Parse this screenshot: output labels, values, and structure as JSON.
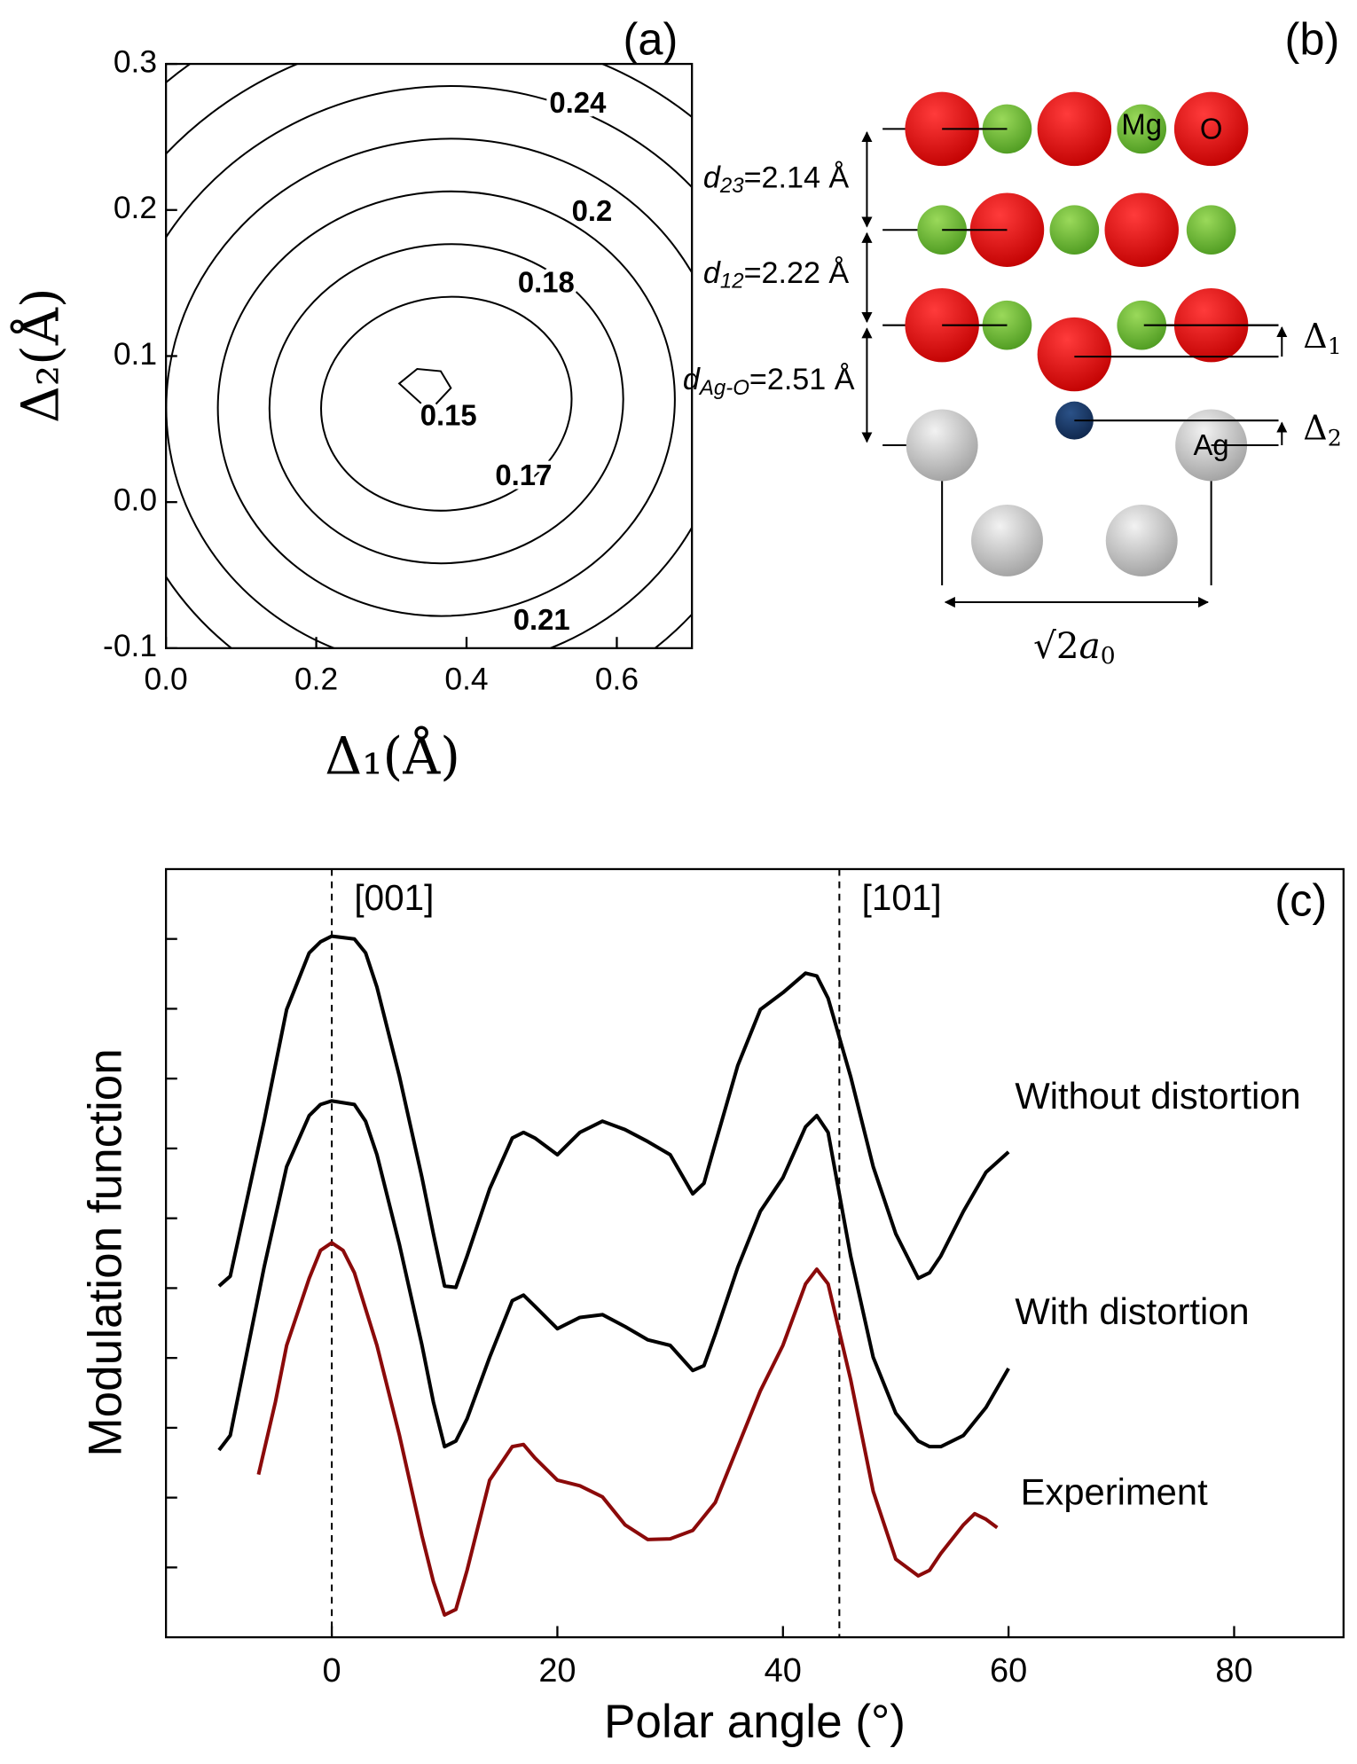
{
  "chart_data": [
    {
      "type": "contour",
      "title": "(a)",
      "xlabel": "Δ₁(Å)",
      "ylabel": "Δ₂(Å)",
      "xlim": [
        0,
        0.7
      ],
      "ylim": [
        -0.1,
        0.3
      ],
      "xticks": [
        {
          "value": 0,
          "label": "0.0"
        },
        0.2,
        0.4,
        0.6
      ],
      "yticks": [
        -0.1,
        {
          "value": 0,
          "label": "0.0"
        },
        0.1,
        0.2,
        0.3
      ],
      "contour_labels": [
        {
          "value": 0.24,
          "x": 0.548,
          "y": 0.272
        },
        {
          "value": 0.2,
          "x": 0.567,
          "y": 0.198
        },
        {
          "value": 0.18,
          "x": 0.506,
          "y": 0.149
        },
        {
          "value": 0.15,
          "x": 0.376,
          "y": 0.058
        },
        {
          "value": 0.17,
          "x": 0.476,
          "y": 0.017
        },
        {
          "value": 0.21,
          "x": 0.5,
          "y": -0.082
        }
      ]
    },
    {
      "type": "line",
      "title": "(c)",
      "xlabel": "Polar angle (°)",
      "ylabel": "Modulation function",
      "xlim": [
        -14.7,
        89.7
      ],
      "ylim": [
        0,
        11
      ],
      "xticks": [
        0,
        20,
        40,
        60,
        80
      ],
      "yticks": [
        1,
        2,
        3,
        4,
        5,
        6,
        7,
        8,
        9,
        10
      ],
      "vlines": [
        {
          "x": 0,
          "label": "[001]"
        },
        {
          "x": 45,
          "label": "[101]"
        }
      ],
      "series": [
        {
          "name": "Without distortion",
          "color": "#000000",
          "x": [
            -10,
            -9,
            -6,
            -4,
            -2,
            -1,
            0,
            2,
            3,
            4,
            6,
            8,
            9,
            10,
            11,
            12,
            14,
            16,
            17,
            18,
            20,
            22,
            24,
            26,
            28,
            30,
            32,
            33,
            34,
            36,
            38,
            40,
            42,
            43,
            44,
            46,
            48,
            50,
            52,
            53,
            54,
            56,
            58,
            60
          ],
          "values": [
            5.03,
            5.17,
            7.39,
            8.99,
            9.8,
            9.96,
            10.04,
            10.0,
            9.8,
            9.31,
            8.03,
            6.58,
            5.78,
            5.03,
            5.01,
            5.46,
            6.42,
            7.15,
            7.23,
            7.15,
            6.91,
            7.23,
            7.39,
            7.27,
            7.1,
            6.91,
            6.35,
            6.5,
            7.07,
            8.19,
            8.99,
            9.23,
            9.51,
            9.47,
            9.15,
            8.03,
            6.74,
            5.78,
            5.14,
            5.22,
            5.46,
            6.1,
            6.66,
            6.95
          ]
        },
        {
          "name": "With distortion",
          "color": "#000000",
          "x": [
            -10,
            -9,
            -6,
            -4,
            -2,
            -1,
            0,
            2,
            3,
            4,
            6,
            8,
            9,
            10,
            11,
            12,
            14,
            16,
            17,
            18,
            20,
            22,
            24,
            26,
            28,
            30,
            32,
            33,
            34,
            36,
            38,
            40,
            42,
            43,
            44,
            46,
            48,
            50,
            52,
            53,
            54,
            56,
            58,
            60
          ],
          "values": [
            2.68,
            2.89,
            5.3,
            6.74,
            7.47,
            7.63,
            7.68,
            7.63,
            7.39,
            6.91,
            5.62,
            4.18,
            3.37,
            2.73,
            2.81,
            3.13,
            4.01,
            4.82,
            4.9,
            4.74,
            4.42,
            4.58,
            4.62,
            4.45,
            4.26,
            4.18,
            3.82,
            3.89,
            4.34,
            5.3,
            6.1,
            6.58,
            7.31,
            7.47,
            7.23,
            5.46,
            4.01,
            3.21,
            2.81,
            2.73,
            2.73,
            2.89,
            3.29,
            3.85
          ]
        },
        {
          "name": "Experiment",
          "color": "#8b0a0a",
          "x": [
            -6.5,
            -5,
            -4,
            -2,
            -1,
            0,
            1,
            2,
            4,
            6,
            8,
            9,
            10,
            11,
            12,
            14,
            16,
            17,
            18,
            20,
            22,
            24,
            26,
            28,
            30,
            32,
            34,
            36,
            38,
            40,
            42,
            43,
            44,
            46,
            48,
            50,
            52,
            53,
            54,
            56,
            57,
            58,
            59
          ],
          "values": [
            2.33,
            3.37,
            4.18,
            5.14,
            5.54,
            5.65,
            5.54,
            5.22,
            4.18,
            2.89,
            1.45,
            0.8,
            0.32,
            0.4,
            0.96,
            2.25,
            2.73,
            2.76,
            2.57,
            2.25,
            2.17,
            2.01,
            1.61,
            1.4,
            1.41,
            1.53,
            1.93,
            2.73,
            3.53,
            4.18,
            5.06,
            5.27,
            5.06,
            3.69,
            2.09,
            1.12,
            0.88,
            0.96,
            1.2,
            1.61,
            1.77,
            1.69,
            1.57
          ]
        }
      ]
    }
  ],
  "diagram": {
    "title": "(b)",
    "atoms": [
      "Mg",
      "O",
      "Ag"
    ],
    "spacings": [
      {
        "text": "d",
        "subscript": "23",
        "suffix": "=2.14 Å"
      },
      {
        "text": "d",
        "subscript": "12",
        "suffix": "=2.22 Å"
      },
      {
        "text": "d",
        "subscript": "Ag-O",
        "suffix": "=2.51 Å"
      }
    ],
    "shifts": [
      {
        "text": "Δ",
        "subscript": "1"
      },
      {
        "text": "Δ",
        "subscript": "2"
      }
    ],
    "width": {
      "text": "√2",
      "symbol": "a",
      "subscript": "0"
    }
  }
}
